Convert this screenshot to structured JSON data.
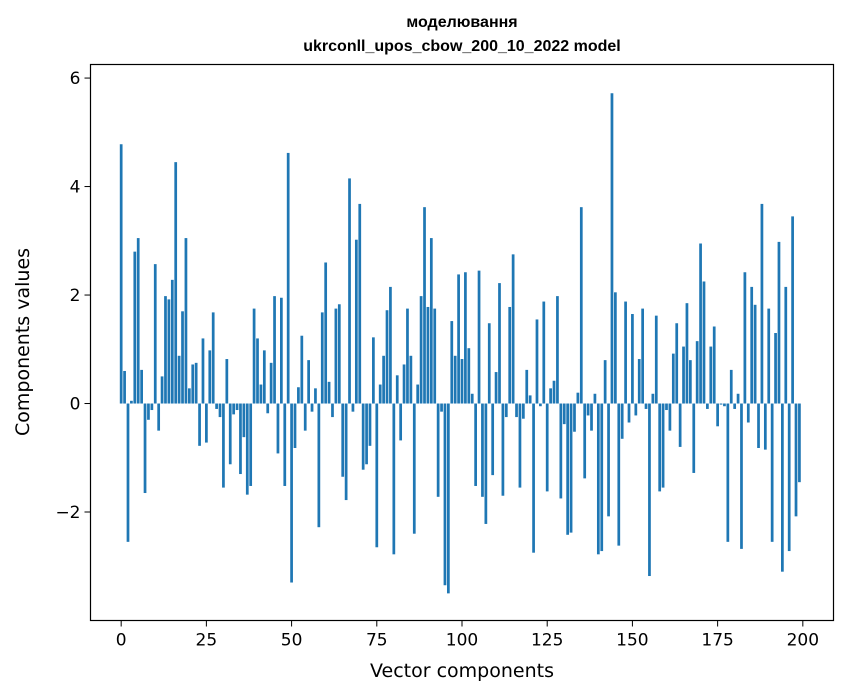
{
  "chart_data": {
    "type": "bar",
    "title": "моделювання",
    "subtitle": "ukrconll_upos_cbow_200_10_2022 model",
    "xlabel": "Vector components",
    "ylabel": "Components values",
    "xlim": [
      -9,
      209
    ],
    "ylim": [
      -4.0,
      6.25
    ],
    "xticks": [
      0,
      25,
      50,
      75,
      100,
      125,
      150,
      175,
      200
    ],
    "yticks": [
      -2,
      0,
      2,
      4,
      6
    ],
    "ytick_labels": [
      "−2",
      "0",
      "2",
      "4",
      "6"
    ],
    "grid": false,
    "bar_color": "#1f77b4",
    "x": [
      0,
      1,
      2,
      3,
      4,
      5,
      6,
      7,
      8,
      9,
      10,
      11,
      12,
      13,
      14,
      15,
      16,
      17,
      18,
      19,
      20,
      21,
      22,
      23,
      24,
      25,
      26,
      27,
      28,
      29,
      30,
      31,
      32,
      33,
      34,
      35,
      36,
      37,
      38,
      39,
      40,
      41,
      42,
      43,
      44,
      45,
      46,
      47,
      48,
      49,
      50,
      51,
      52,
      53,
      54,
      55,
      56,
      57,
      58,
      59,
      60,
      61,
      62,
      63,
      64,
      65,
      66,
      67,
      68,
      69,
      70,
      71,
      72,
      73,
      74,
      75,
      76,
      77,
      78,
      79,
      80,
      81,
      82,
      83,
      84,
      85,
      86,
      87,
      88,
      89,
      90,
      91,
      92,
      93,
      94,
      95,
      96,
      97,
      98,
      99,
      100,
      101,
      102,
      103,
      104,
      105,
      106,
      107,
      108,
      109,
      110,
      111,
      112,
      113,
      114,
      115,
      116,
      117,
      118,
      119,
      120,
      121,
      122,
      123,
      124,
      125,
      126,
      127,
      128,
      129,
      130,
      131,
      132,
      133,
      134,
      135,
      136,
      137,
      138,
      139,
      140,
      141,
      142,
      143,
      144,
      145,
      146,
      147,
      148,
      149,
      150,
      151,
      152,
      153,
      154,
      155,
      156,
      157,
      158,
      159,
      160,
      161,
      162,
      163,
      164,
      165,
      166,
      167,
      168,
      169,
      170,
      171,
      172,
      173,
      174,
      175,
      176,
      177,
      178,
      179,
      180,
      181,
      182,
      183,
      184,
      185,
      186,
      187,
      188,
      189,
      190,
      191,
      192,
      193,
      194,
      195,
      196,
      197,
      198,
      199
    ],
    "values": [
      4.78,
      0.6,
      -2.55,
      0.05,
      2.8,
      3.05,
      0.62,
      -1.65,
      -0.3,
      -0.12,
      2.57,
      -0.5,
      0.5,
      1.98,
      1.92,
      2.28,
      4.45,
      0.88,
      1.7,
      3.05,
      0.28,
      0.72,
      0.75,
      -0.78,
      1.2,
      -0.72,
      0.98,
      1.68,
      -0.1,
      -0.25,
      -1.55,
      0.82,
      -1.12,
      -0.2,
      -0.12,
      -1.3,
      -0.62,
      -1.68,
      -1.52,
      1.75,
      1.2,
      0.35,
      0.98,
      -0.18,
      0.75,
      1.98,
      -0.92,
      1.95,
      -1.52,
      4.62,
      -3.3,
      -0.82,
      0.3,
      1.25,
      -0.5,
      0.8,
      -0.15,
      0.28,
      -2.28,
      1.68,
      2.6,
      0.4,
      -0.25,
      1.75,
      1.83,
      -1.35,
      -1.78,
      4.15,
      -0.15,
      3.02,
      3.68,
      -1.22,
      -1.12,
      -0.78,
      1.22,
      -2.65,
      0.35,
      0.88,
      1.72,
      2.15,
      -2.78,
      0.52,
      -0.68,
      0.72,
      1.75,
      0.88,
      -2.4,
      0.35,
      1.98,
      3.62,
      1.78,
      3.05,
      1.75,
      -1.72,
      -0.15,
      -3.35,
      -3.5,
      1.52,
      0.88,
      2.38,
      0.82,
      2.42,
      1.02,
      0.18,
      -1.52,
      2.45,
      -1.72,
      -2.22,
      1.48,
      -1.32,
      0.58,
      2.22,
      -1.7,
      -0.25,
      1.78,
      2.75,
      -0.25,
      -1.55,
      -0.28,
      0.62,
      0.15,
      -2.75,
      1.55,
      -0.05,
      1.88,
      -1.62,
      0.28,
      0.42,
      1.98,
      -1.75,
      -0.38,
      -2.42,
      -2.38,
      -0.52,
      0.2,
      3.62,
      -1.38,
      -0.22,
      -0.5,
      0.18,
      -2.78,
      -2.72,
      0.8,
      -2.08,
      5.72,
      2.05,
      -2.62,
      -0.65,
      1.88,
      -0.35,
      1.65,
      -0.22,
      0.82,
      1.75,
      -0.1,
      -3.18,
      0.18,
      1.62,
      -1.62,
      -1.55,
      -0.12,
      -0.5,
      0.92,
      1.48,
      -0.8,
      1.05,
      1.85,
      0.8,
      -1.28,
      1.15,
      2.95,
      2.25,
      -0.1,
      1.05,
      1.42,
      -0.42,
      -0.02,
      -0.05,
      -2.55,
      0.62,
      -0.1,
      0.18,
      -2.68,
      2.42,
      -0.35,
      2.15,
      1.82,
      -0.82,
      3.68,
      -0.85,
      1.75,
      -2.55,
      1.3,
      2.98,
      -3.1,
      2.15,
      -2.72,
      3.45,
      -2.08,
      -1.45
    ]
  }
}
